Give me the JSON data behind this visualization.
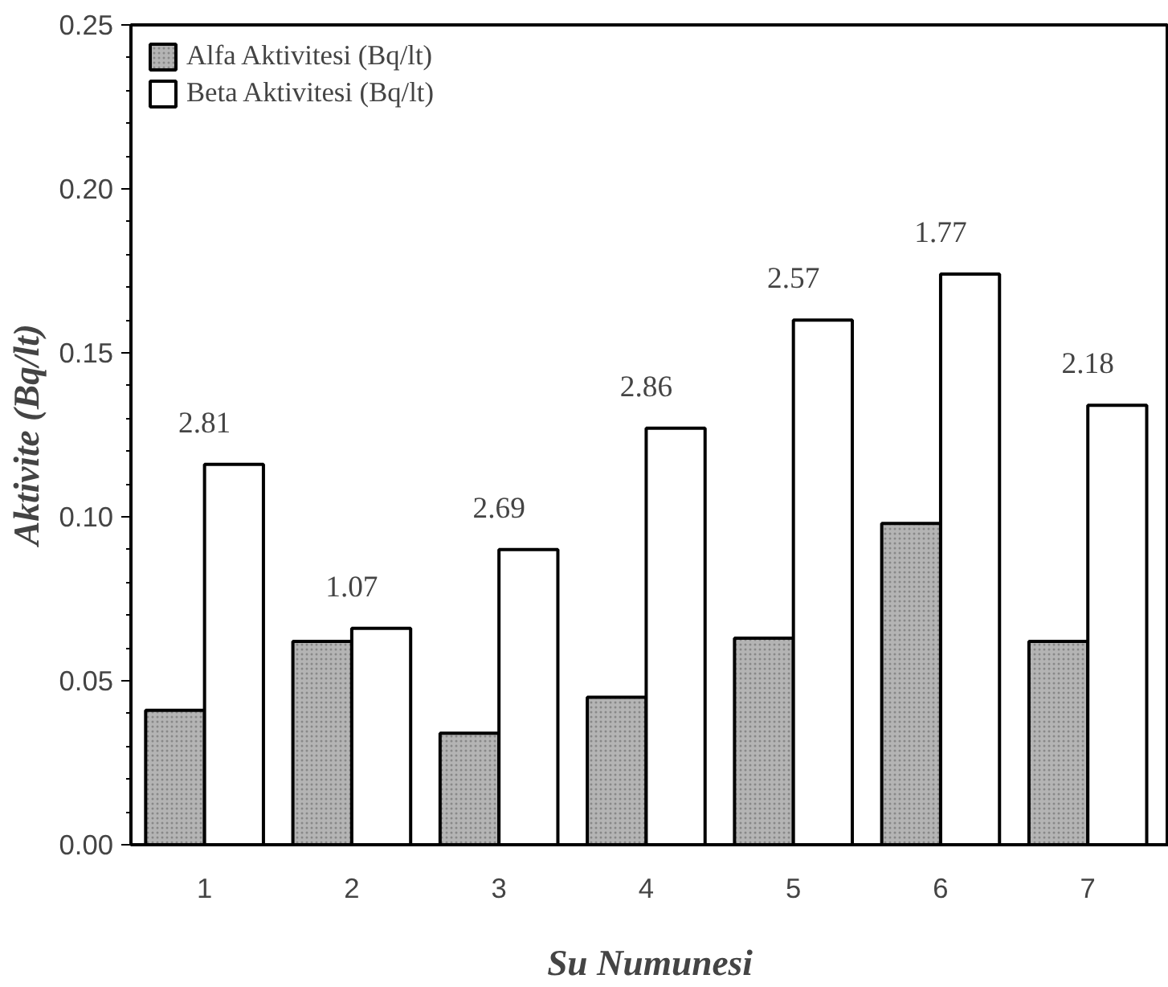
{
  "chart_data": {
    "type": "bar",
    "xlabel": "Su Numunesi",
    "ylabel": "Aktivite (Bq/lt)",
    "categories": [
      "1",
      "2",
      "3",
      "4",
      "5",
      "6",
      "7"
    ],
    "series": [
      {
        "name": "Alfa Aktivitesi (Bq/lt)",
        "color": "#b4b4b4",
        "values": [
          0.041,
          0.062,
          0.034,
          0.045,
          0.063,
          0.098,
          0.062
        ]
      },
      {
        "name": "Beta Aktivitesi (Bq/lt)",
        "color": "#ffffff",
        "values": [
          0.116,
          0.066,
          0.09,
          0.127,
          0.16,
          0.174,
          0.134
        ]
      }
    ],
    "ylim": [
      0,
      0.25
    ],
    "yticks": [
      {
        "value": 0,
        "label": "0.00"
      },
      {
        "value": 0.05,
        "label": "0.05"
      },
      {
        "value": 0.1,
        "label": "0.10"
      },
      {
        "value": 0.15,
        "label": "0.15"
      },
      {
        "value": 0.2,
        "label": "0.20"
      },
      {
        "value": 0.25,
        "label": "0.25"
      }
    ],
    "annotations": [
      "2.81",
      "1.07",
      "2.69",
      "2.86",
      "2.57",
      "1.77",
      "2.18"
    ],
    "grid": false,
    "legend": "top left"
  }
}
